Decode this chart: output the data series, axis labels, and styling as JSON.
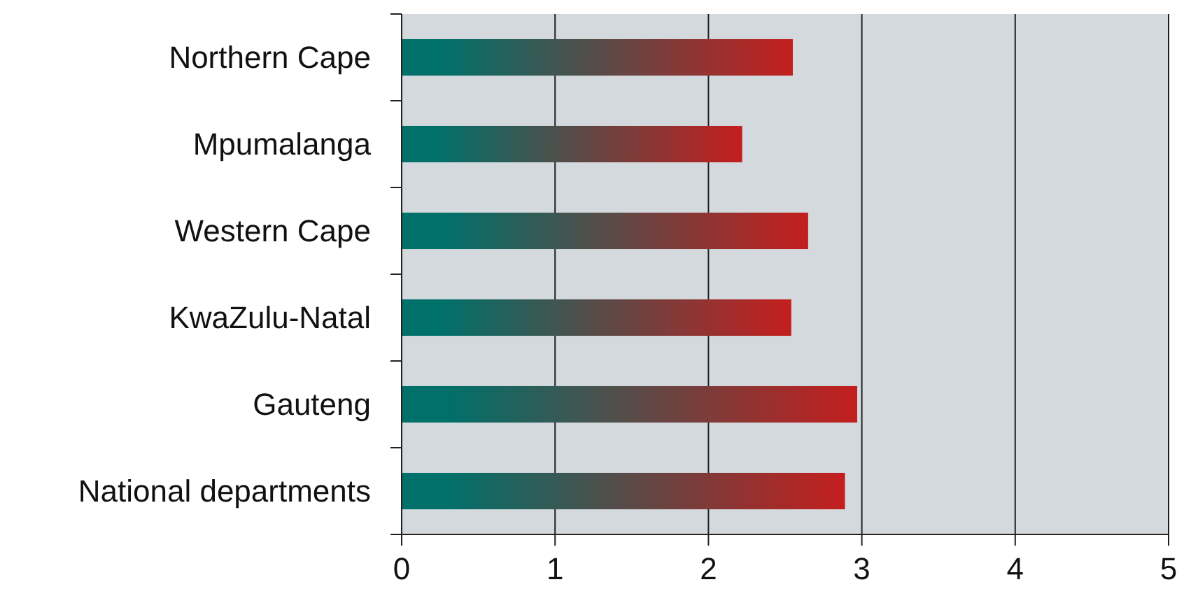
{
  "chart_data": {
    "type": "bar",
    "orientation": "horizontal",
    "categories": [
      "Northern Cape",
      "Mpumalanga",
      "Western Cape",
      "KwaZulu-Natal",
      "Gauteng",
      "National departments"
    ],
    "values": [
      2.55,
      2.22,
      2.65,
      2.54,
      2.97,
      2.89
    ],
    "color": "#c41e1e",
    "xlim": [
      0,
      5
    ],
    "xticks": [
      0,
      1,
      2,
      3,
      4,
      5
    ],
    "grid": "x"
  }
}
